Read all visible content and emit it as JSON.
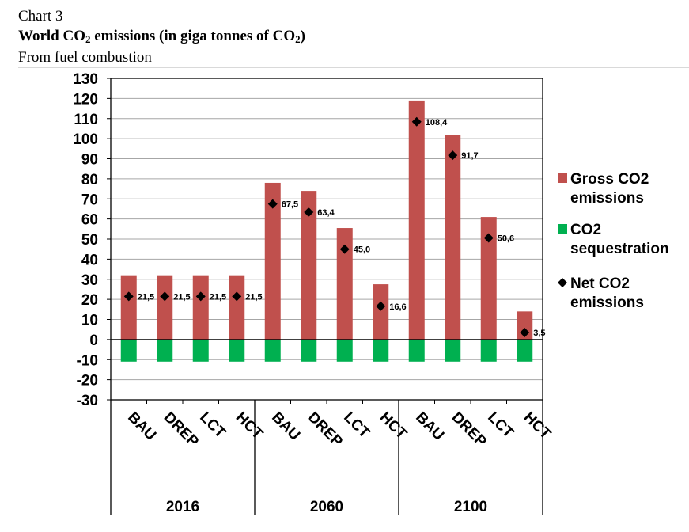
{
  "header": {
    "chart_label": "Chart 3",
    "title_pre": "World CO",
    "title_sub": "2",
    "title_mid": " emissions (in giga tonnes of CO",
    "title_sub2": "2",
    "title_post": ")",
    "subtitle": "From fuel combustion"
  },
  "colors": {
    "gross": "#c0504d",
    "sequestration": "#00b050",
    "net": "#000000"
  },
  "chart_data": {
    "type": "bar",
    "title": "World CO2 emissions (in giga tonnes of CO2)",
    "subtitle": "From fuel combustion",
    "ylim": [
      -30,
      130
    ],
    "yticks": [
      130,
      120,
      110,
      100,
      90,
      80,
      70,
      60,
      50,
      40,
      30,
      20,
      10,
      0,
      -10,
      -20,
      -30
    ],
    "grid": true,
    "legend_position": "right",
    "groups": [
      "2016",
      "2060",
      "2100"
    ],
    "categories": [
      "BAU",
      "DREP",
      "LCT",
      "HCT",
      "BAU",
      "DREP",
      "LCT",
      "HCT",
      "BAU",
      "DREP",
      "LCT",
      "HCT"
    ],
    "series": [
      {
        "name": "Gross CO2 emissions",
        "kind": "bar",
        "color": "#c0504d",
        "values": [
          32,
          32,
          32,
          32,
          78,
          74,
          55.5,
          27.5,
          119,
          102,
          61,
          14
        ]
      },
      {
        "name": "CO2 sequestration",
        "kind": "bar",
        "color": "#00b050",
        "values": [
          -11,
          -11,
          -11,
          -11,
          -11,
          -11,
          -11,
          -11,
          -11,
          -11,
          -11,
          -11
        ]
      },
      {
        "name": "Net CO2 emissions",
        "kind": "marker",
        "color": "#000000",
        "values": [
          21.5,
          21.5,
          21.5,
          21.5,
          67.5,
          63.4,
          45.0,
          16.6,
          108.4,
          91.7,
          50.6,
          3.5
        ],
        "labels": [
          "21,5",
          "21,5",
          "21,5",
          "21,5",
          "67,5",
          "63,4",
          "45,0",
          "16,6",
          "108,4",
          "91,7",
          "50,6",
          "3,5"
        ]
      }
    ],
    "legend": [
      {
        "lines": [
          "Gross CO2",
          "emissions"
        ],
        "symbol": "square",
        "color": "#c0504d"
      },
      {
        "lines": [
          "CO2",
          "sequestration"
        ],
        "symbol": "square",
        "color": "#00b050"
      },
      {
        "lines": [
          "Net CO2",
          "emissions"
        ],
        "symbol": "diamond",
        "color": "#000000"
      }
    ]
  }
}
